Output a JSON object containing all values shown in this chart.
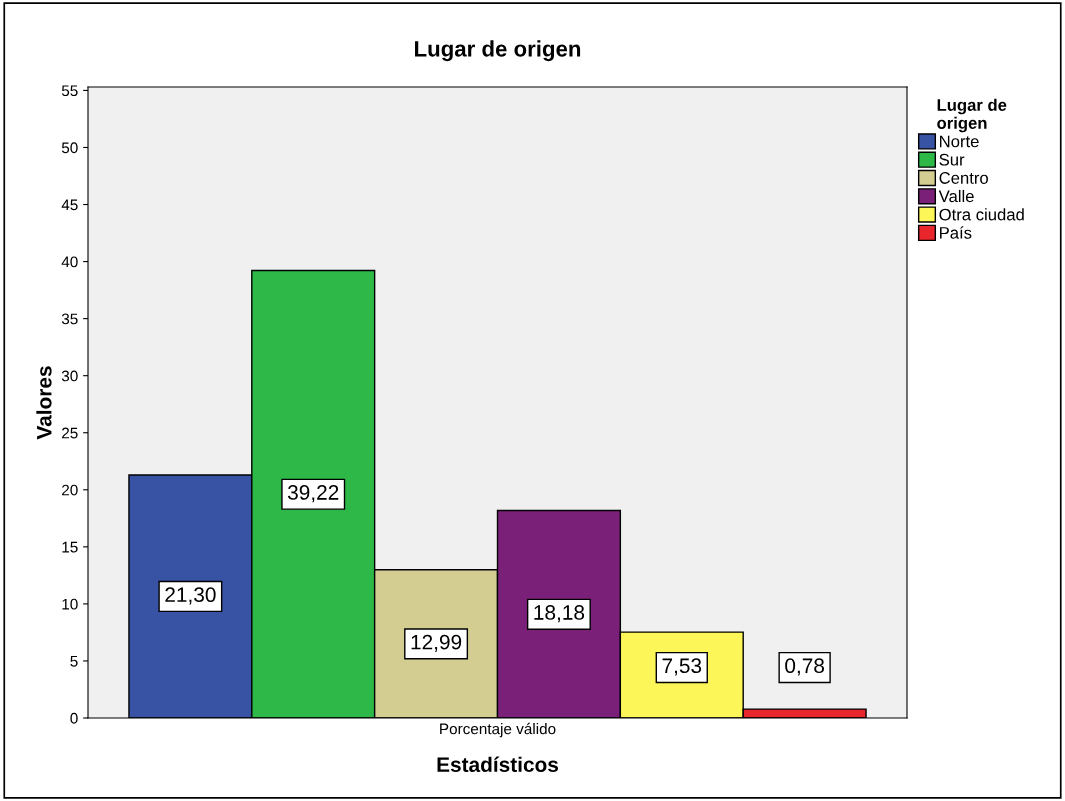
{
  "chart_data": {
    "type": "bar",
    "title": "Lugar de origen",
    "xlabel": "Estadísticos",
    "ylabel": "Valores",
    "legend_title": "Lugar de\norigen",
    "categories": [
      "Porcentaje válido"
    ],
    "series": [
      {
        "name": "Norte",
        "color": "#3953a4",
        "values": [
          21.3
        ],
        "value_labels": [
          "21,30"
        ]
      },
      {
        "name": "Sur",
        "color": "#2db847",
        "values": [
          39.22
        ],
        "value_labels": [
          "39,22"
        ]
      },
      {
        "name": "Centro",
        "color": "#d3cd92",
        "values": [
          12.99
        ],
        "value_labels": [
          "12,99"
        ]
      },
      {
        "name": "Valle",
        "color": "#7b2078",
        "values": [
          18.18
        ],
        "value_labels": [
          "18,18"
        ]
      },
      {
        "name": "Otra ciudad",
        "color": "#fcf659",
        "values": [
          7.53
        ],
        "value_labels": [
          "7,53"
        ]
      },
      {
        "name": "País",
        "color": "#e8262c",
        "values": [
          0.78
        ],
        "value_labels": [
          "0,78"
        ]
      }
    ],
    "ylim": [
      0,
      55.3
    ],
    "yticks": [
      0,
      5,
      10,
      15,
      20,
      25,
      30,
      35,
      40,
      45,
      50,
      55
    ],
    "grid": false,
    "legend": "right"
  }
}
